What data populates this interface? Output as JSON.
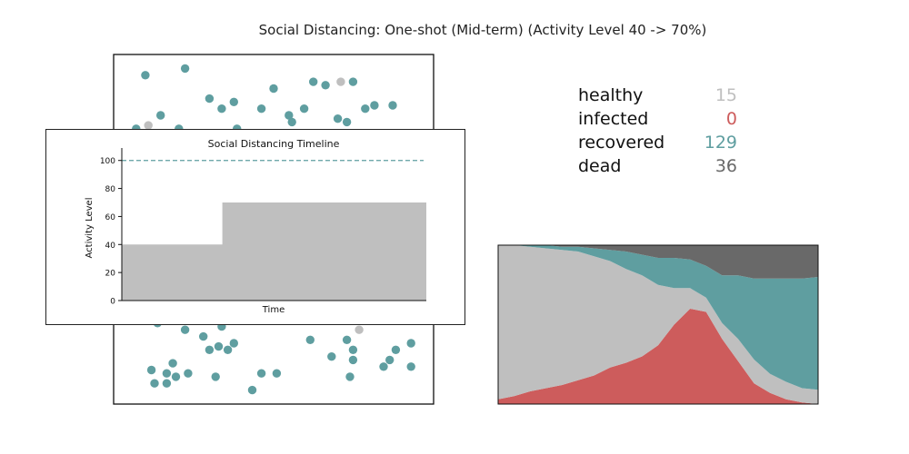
{
  "title": "Social Distancing: One-shot (Mid-term) (Activity Level 40 -> 70%)",
  "colors": {
    "healthy": "#bfbfbf",
    "infected": "#cd5c5c",
    "recovered": "#5f9ea0",
    "dead": "#696969"
  },
  "stats": [
    {
      "label": "healthy",
      "value": "15",
      "color": "#bfbfbf"
    },
    {
      "label": "infected",
      "value": "0",
      "color": "#cd5c5c"
    },
    {
      "label": "recovered",
      "value": "129",
      "color": "#5f9ea0"
    },
    {
      "label": "dead",
      "value": "36",
      "color": "#696969"
    }
  ],
  "chart_data": [
    {
      "type": "scatter",
      "xlim": [
        0,
        1
      ],
      "ylim": [
        0,
        1
      ],
      "grid": false,
      "points": [
        {
          "x": 0.08,
          "y": 0.96,
          "state": "recovered"
        },
        {
          "x": 0.21,
          "y": 0.98,
          "state": "recovered"
        },
        {
          "x": 0.5,
          "y": 0.92,
          "state": "recovered"
        },
        {
          "x": 0.63,
          "y": 0.94,
          "state": "recovered"
        },
        {
          "x": 0.67,
          "y": 0.93,
          "state": "recovered"
        },
        {
          "x": 0.72,
          "y": 0.94,
          "state": "healthy"
        },
        {
          "x": 0.76,
          "y": 0.94,
          "state": "recovered"
        },
        {
          "x": 0.29,
          "y": 0.89,
          "state": "recovered"
        },
        {
          "x": 0.33,
          "y": 0.86,
          "state": "recovered"
        },
        {
          "x": 0.37,
          "y": 0.88,
          "state": "recovered"
        },
        {
          "x": 0.46,
          "y": 0.86,
          "state": "recovered"
        },
        {
          "x": 0.55,
          "y": 0.84,
          "state": "recovered"
        },
        {
          "x": 0.6,
          "y": 0.86,
          "state": "recovered"
        },
        {
          "x": 0.8,
          "y": 0.86,
          "state": "recovered"
        },
        {
          "x": 0.83,
          "y": 0.87,
          "state": "recovered"
        },
        {
          "x": 0.89,
          "y": 0.87,
          "state": "recovered"
        },
        {
          "x": 0.13,
          "y": 0.84,
          "state": "recovered"
        },
        {
          "x": 0.56,
          "y": 0.82,
          "state": "recovered"
        },
        {
          "x": 0.71,
          "y": 0.83,
          "state": "recovered"
        },
        {
          "x": 0.74,
          "y": 0.82,
          "state": "recovered"
        },
        {
          "x": 0.05,
          "y": 0.8,
          "state": "recovered"
        },
        {
          "x": 0.09,
          "y": 0.81,
          "state": "healthy"
        },
        {
          "x": 0.19,
          "y": 0.8,
          "state": "recovered"
        },
        {
          "x": 0.38,
          "y": 0.8,
          "state": "recovered"
        },
        {
          "x": 0.12,
          "y": 0.22,
          "state": "recovered"
        },
        {
          "x": 0.21,
          "y": 0.2,
          "state": "recovered"
        },
        {
          "x": 0.28,
          "y": 0.23,
          "state": "healthy"
        },
        {
          "x": 0.47,
          "y": 0.23,
          "state": "recovered"
        },
        {
          "x": 0.84,
          "y": 0.23,
          "state": "recovered"
        },
        {
          "x": 0.33,
          "y": 0.21,
          "state": "recovered"
        },
        {
          "x": 0.78,
          "y": 0.2,
          "state": "healthy"
        },
        {
          "x": 0.27,
          "y": 0.18,
          "state": "recovered"
        },
        {
          "x": 0.62,
          "y": 0.17,
          "state": "recovered"
        },
        {
          "x": 0.74,
          "y": 0.17,
          "state": "recovered"
        },
        {
          "x": 0.95,
          "y": 0.16,
          "state": "recovered"
        },
        {
          "x": 0.32,
          "y": 0.15,
          "state": "recovered"
        },
        {
          "x": 0.37,
          "y": 0.16,
          "state": "recovered"
        },
        {
          "x": 0.29,
          "y": 0.14,
          "state": "recovered"
        },
        {
          "x": 0.35,
          "y": 0.14,
          "state": "recovered"
        },
        {
          "x": 0.76,
          "y": 0.14,
          "state": "recovered"
        },
        {
          "x": 0.9,
          "y": 0.14,
          "state": "recovered"
        },
        {
          "x": 0.69,
          "y": 0.12,
          "state": "recovered"
        },
        {
          "x": 0.76,
          "y": 0.11,
          "state": "recovered"
        },
        {
          "x": 0.88,
          "y": 0.11,
          "state": "recovered"
        },
        {
          "x": 0.17,
          "y": 0.1,
          "state": "recovered"
        },
        {
          "x": 0.86,
          "y": 0.09,
          "state": "recovered"
        },
        {
          "x": 0.95,
          "y": 0.09,
          "state": "recovered"
        },
        {
          "x": 0.1,
          "y": 0.08,
          "state": "recovered"
        },
        {
          "x": 0.15,
          "y": 0.07,
          "state": "recovered"
        },
        {
          "x": 0.22,
          "y": 0.07,
          "state": "recovered"
        },
        {
          "x": 0.46,
          "y": 0.07,
          "state": "recovered"
        },
        {
          "x": 0.51,
          "y": 0.07,
          "state": "recovered"
        },
        {
          "x": 0.18,
          "y": 0.06,
          "state": "recovered"
        },
        {
          "x": 0.31,
          "y": 0.06,
          "state": "recovered"
        },
        {
          "x": 0.75,
          "y": 0.06,
          "state": "recovered"
        },
        {
          "x": 0.11,
          "y": 0.04,
          "state": "recovered"
        },
        {
          "x": 0.15,
          "y": 0.04,
          "state": "recovered"
        },
        {
          "x": 0.43,
          "y": 0.02,
          "state": "recovered"
        }
      ]
    },
    {
      "type": "area",
      "stacked": true,
      "x": [
        0,
        0.05,
        0.1,
        0.15,
        0.2,
        0.25,
        0.3,
        0.35,
        0.4,
        0.45,
        0.5,
        0.55,
        0.6,
        0.65,
        0.7,
        0.75,
        0.8,
        0.85,
        0.9,
        0.95,
        1.0
      ],
      "series": [
        {
          "name": "infected",
          "values": [
            3,
            5,
            8,
            10,
            12,
            15,
            18,
            23,
            26,
            30,
            37,
            50,
            60,
            58,
            41,
            27,
            13,
            7,
            3,
            1,
            0
          ]
        },
        {
          "name": "healthy",
          "values": [
            97,
            95,
            91,
            88,
            85,
            81,
            75,
            67,
            59,
            51,
            38,
            23,
            13,
            9,
            10,
            14,
            15,
            12,
            11,
            9,
            9
          ]
        },
        {
          "name": "recovered",
          "values": [
            0,
            0,
            1,
            2,
            2,
            3,
            5,
            7,
            11,
            13,
            17,
            19,
            18,
            20,
            30,
            40,
            51,
            60,
            65,
            69,
            71
          ]
        },
        {
          "name": "dead",
          "values": [
            0,
            0,
            0,
            0,
            1,
            1,
            2,
            3,
            4,
            6,
            8,
            8,
            9,
            13,
            19,
            19,
            21,
            21,
            21,
            21,
            20
          ]
        }
      ],
      "ylim": [
        0,
        100
      ],
      "grid": false
    },
    {
      "type": "area",
      "title": "Social Distancing Timeline",
      "xlabel": "Time",
      "ylabel": "Activity Level",
      "x": [
        0,
        0.33,
        0.33,
        1
      ],
      "values": [
        40,
        40,
        70,
        70
      ],
      "reference_line": 100,
      "yticks": [
        0,
        20,
        40,
        60,
        80,
        100
      ],
      "ylim": [
        0,
        105
      ],
      "grid": false
    }
  ]
}
